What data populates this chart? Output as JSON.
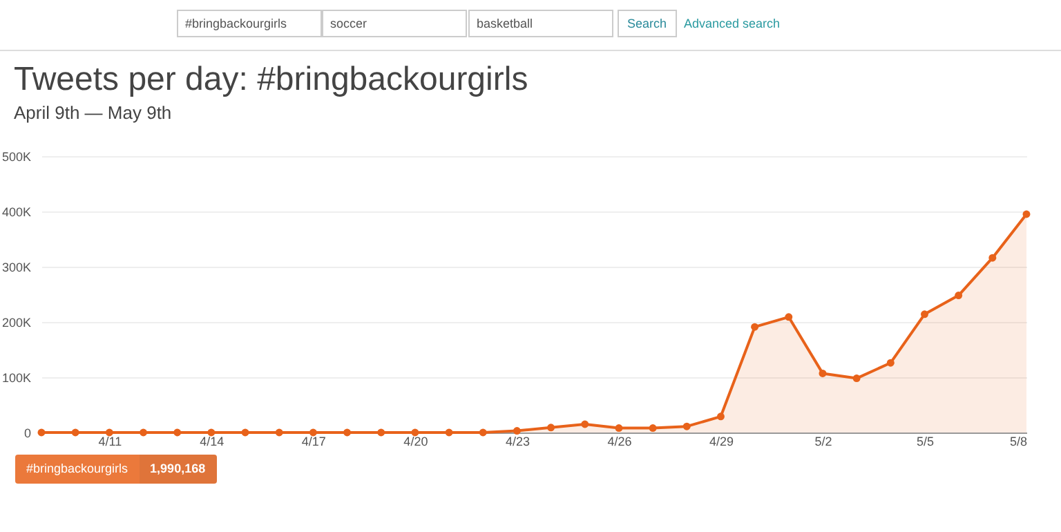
{
  "chart_data": {
    "type": "area",
    "title": "Tweets per day: #bringbackourgirls",
    "subtitle": "April 9th — May 9th",
    "annotations": [
      "#bringbackourgirls",
      "soccer",
      "basketball",
      "Search",
      "Advanced search",
      "1,990,168"
    ],
    "x": [
      "--04-09",
      "--04-10",
      "--04-11",
      "--04-12",
      "--04-13",
      "--04-14",
      "--04-15",
      "--04-16",
      "--04-17",
      "--04-18",
      "--04-19",
      "--04-20",
      "--04-21",
      "--04-22",
      "--04-23",
      "--04-24",
      "--04-25",
      "--04-26",
      "--04-27",
      "--04-28",
      "--04-29",
      "--04-30",
      "--05-01",
      "--05-02",
      "--05-03",
      "--05-04",
      "--05-05",
      "--05-06",
      "--05-07",
      "--05-08"
    ],
    "series": [
      {
        "name": "#bringbackourgirls",
        "color": "#e8621a",
        "values": [
          0,
          0,
          0,
          0,
          0,
          0,
          0,
          0,
          0,
          0,
          0,
          0,
          0,
          0,
          3000,
          9000,
          15000,
          8000,
          8000,
          11000,
          29000,
          191000,
          209000,
          107000,
          98000,
          126000,
          214000,
          248000,
          316000,
          395000
        ]
      }
    ],
    "xlim": [
      "--04-09",
      "--05-08"
    ],
    "xticks": [
      {
        "value": "--04-11",
        "label": "4/11"
      },
      {
        "value": "--04-14",
        "label": "4/14"
      },
      {
        "value": "--04-17",
        "label": "4/17"
      },
      {
        "value": "--04-20",
        "label": "4/20"
      },
      {
        "value": "--04-23",
        "label": "4/23"
      },
      {
        "value": "--04-26",
        "label": "4/26"
      },
      {
        "value": "--04-29",
        "label": "4/29"
      },
      {
        "value": "--05-02",
        "label": "5/2"
      },
      {
        "value": "--05-05",
        "label": "5/5"
      },
      {
        "value": "--05-08",
        "label": "5/8"
      }
    ],
    "ylim": [
      0,
      500000
    ],
    "yticks": [
      {
        "value": 0,
        "label": "0"
      },
      {
        "value": 100000,
        "label": "100K"
      },
      {
        "value": 200000,
        "label": "200K"
      },
      {
        "value": 300000,
        "label": "300K"
      },
      {
        "value": 400000,
        "label": "400K"
      },
      {
        "value": 500000,
        "label": "500K"
      }
    ],
    "grid": "y",
    "legend": "bottom left",
    "marker": "circle",
    "line_style": "solid"
  }
}
